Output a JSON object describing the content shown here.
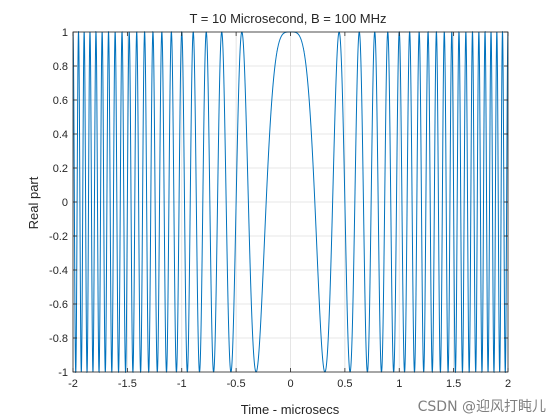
{
  "chart_data": {
    "type": "line",
    "title": "T = 10 Microsecond, B = 100 MHz",
    "xlabel": "Time - microsecs",
    "ylabel": "Real part",
    "xlim": [
      -2,
      2
    ],
    "ylim": [
      -1,
      1
    ],
    "xticks": [
      "-2",
      "-1.5",
      "-1",
      "-0.5",
      "0",
      "0.5",
      "1",
      "1.5",
      "2"
    ],
    "yticks": [
      "-1",
      "-0.8",
      "-0.6",
      "-0.4",
      "-0.2",
      "0",
      "0.2",
      "0.4",
      "0.6",
      "0.8",
      "1"
    ],
    "grid": true,
    "series": [
      {
        "function": "cos(pi*(B/T)*t^2)",
        "T_microsec": 10,
        "B_MHz": 100,
        "color": "#0072BD"
      }
    ]
  },
  "watermark": "CSDN @迎风打盹儿"
}
